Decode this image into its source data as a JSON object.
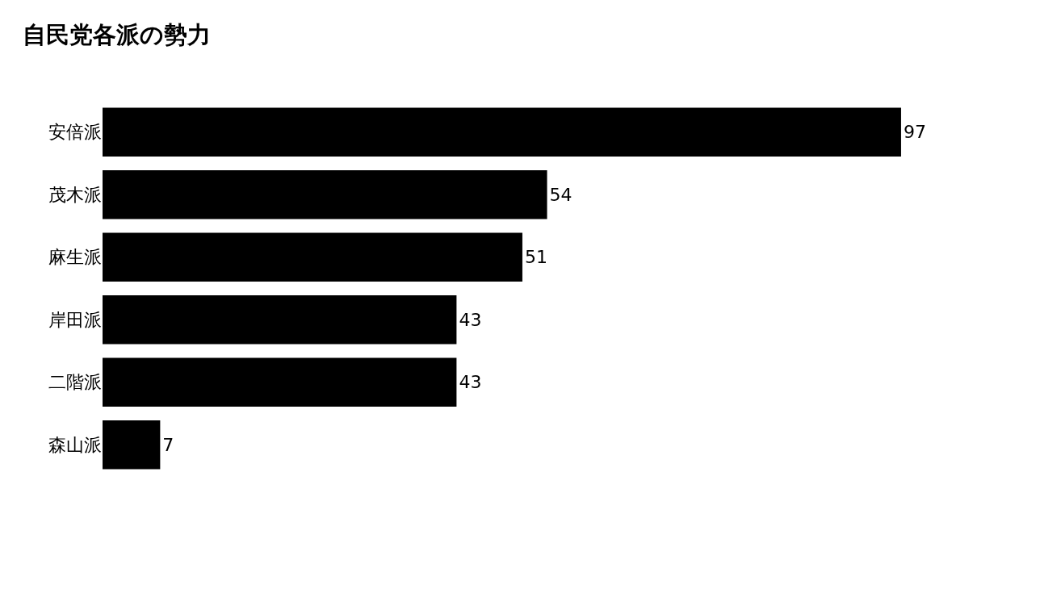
{
  "chart_data": {
    "type": "bar",
    "orientation": "horizontal",
    "title": "自民党各派の勢力",
    "categories": [
      "安倍派",
      "茂木派",
      "麻生派",
      "岸田派",
      "二階派",
      "森山派"
    ],
    "values": [
      97,
      54,
      51,
      43,
      43,
      7
    ],
    "color": "#000000",
    "data_labels": true
  }
}
